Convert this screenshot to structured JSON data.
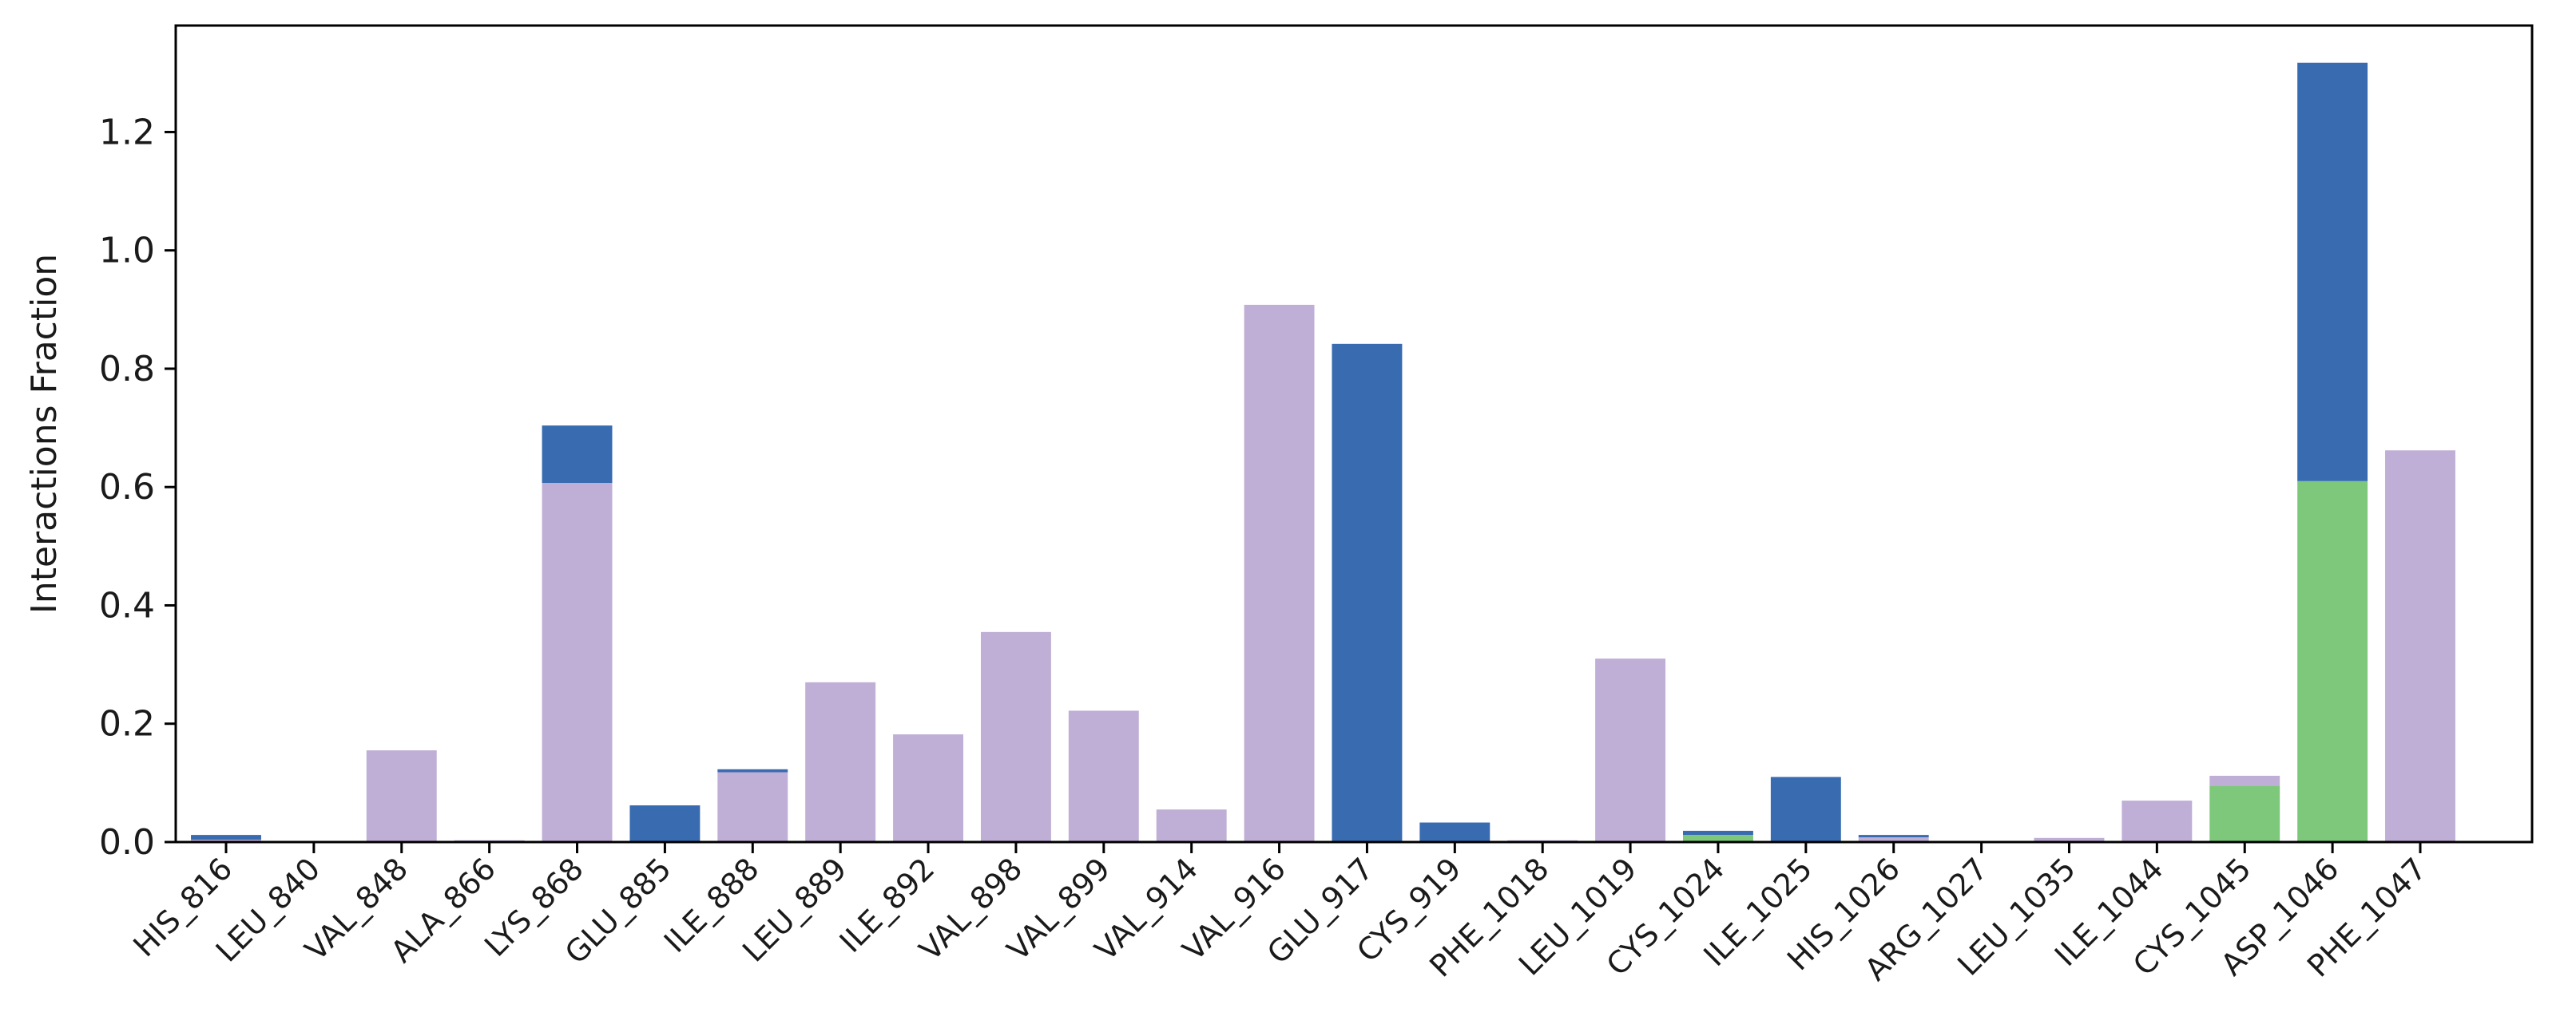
{
  "chart_data": {
    "type": "bar",
    "stacked": true,
    "title": "",
    "xlabel": "",
    "ylabel": "Interactions Fraction",
    "ylim": [
      0,
      1.38
    ],
    "yticks": [
      "0.0",
      "0.2",
      "0.4",
      "0.6",
      "0.8",
      "1.0",
      "1.2"
    ],
    "grid": false,
    "legend": "none",
    "colors": {
      "green": "#7dc87a",
      "purple": "#bfaed5",
      "blue": "#386bb0"
    },
    "categories": [
      "HIS_816",
      "LEU_840",
      "VAL_848",
      "ALA_866",
      "LYS_868",
      "GLU_885",
      "ILE_888",
      "LEU_889",
      "ILE_892",
      "VAL_898",
      "VAL_899",
      "VAL_914",
      "VAL_916",
      "GLU_917",
      "CYS_919",
      "PHE_1018",
      "LEU_1019",
      "CYS_1024",
      "ILE_1025",
      "HIS_1026",
      "ARG_1027",
      "LEU_1035",
      "ILE_1044",
      "CYS_1045",
      "ASP_1046",
      "PHE_1047"
    ],
    "series": [
      {
        "color": "green",
        "values": [
          0,
          0,
          0,
          0,
          0,
          0,
          0,
          0,
          0,
          0,
          0,
          0,
          0,
          0,
          0,
          0,
          0,
          0.012,
          0,
          0,
          0,
          0,
          0,
          0.095,
          0.61,
          0
        ]
      },
      {
        "color": "purple",
        "values": [
          0.004,
          0,
          0.155,
          0.003,
          0.607,
          0,
          0.118,
          0.27,
          0.182,
          0.355,
          0.222,
          0.055,
          0.908,
          0,
          0,
          0.003,
          0.31,
          0,
          0,
          0.008,
          0,
          0.007,
          0.07,
          0.017,
          0,
          0.662
        ]
      },
      {
        "color": "blue",
        "values": [
          0.008,
          0,
          0,
          0,
          0.097,
          0.062,
          0.005,
          0,
          0,
          0,
          0,
          0,
          0,
          0.842,
          0.033,
          0,
          0,
          0.007,
          0.11,
          0.004,
          0,
          0,
          0,
          0,
          0.707,
          0
        ]
      }
    ]
  }
}
